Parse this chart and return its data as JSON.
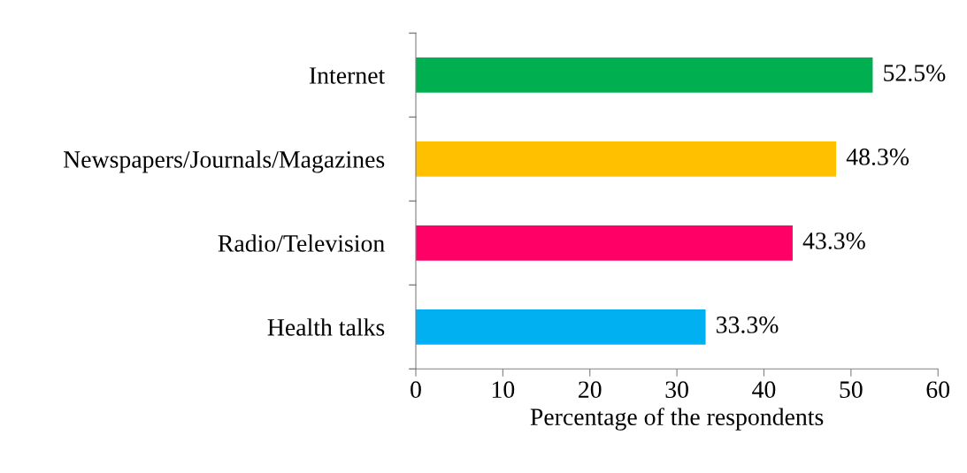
{
  "chart_data": {
    "type": "bar",
    "orientation": "horizontal",
    "xlabel": "Percentage of the respondents",
    "categories": [
      "Internet",
      "Newspapers/Journals/Magazines",
      "Radio/Television",
      "Health talks"
    ],
    "values": [
      52.5,
      48.3,
      43.3,
      33.3
    ],
    "colors": [
      "#00b050",
      "#ffc000",
      "#ff0066",
      "#00b0f0"
    ],
    "value_labels": [
      "52.5%",
      "48.3%",
      "43.3%",
      "33.3%"
    ],
    "xlim": [
      0,
      60
    ],
    "xticks": [
      0,
      10,
      20,
      30,
      40,
      50,
      60
    ],
    "grid": false,
    "legend": false
  }
}
